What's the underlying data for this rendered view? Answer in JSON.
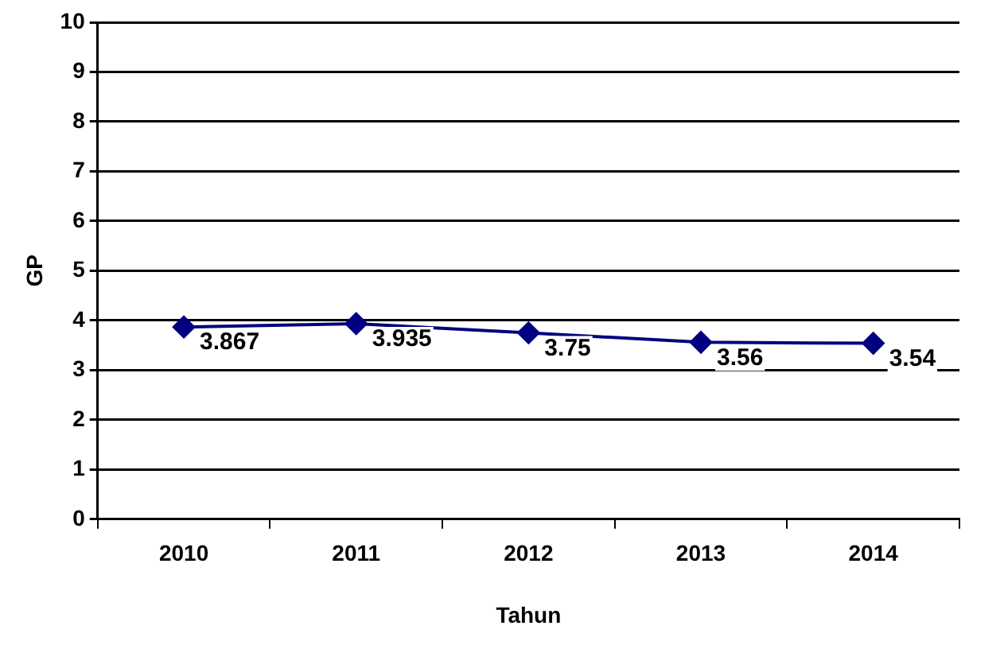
{
  "chart_data": {
    "type": "line",
    "xlabel": "Tahun",
    "ylabel": "GP",
    "categories": [
      "2010",
      "2011",
      "2012",
      "2013",
      "2014"
    ],
    "series": [
      {
        "color": "#000080",
        "values": [
          3.867,
          3.935,
          3.75,
          3.56,
          3.54
        ]
      }
    ],
    "ylim": [
      0,
      10
    ],
    "yticks": [
      0,
      1,
      2,
      3,
      4,
      5,
      6,
      7,
      8,
      9,
      10
    ],
    "grid": "y",
    "legend": false,
    "marker": "diamond",
    "line_style": "solid",
    "data_labels": true
  }
}
